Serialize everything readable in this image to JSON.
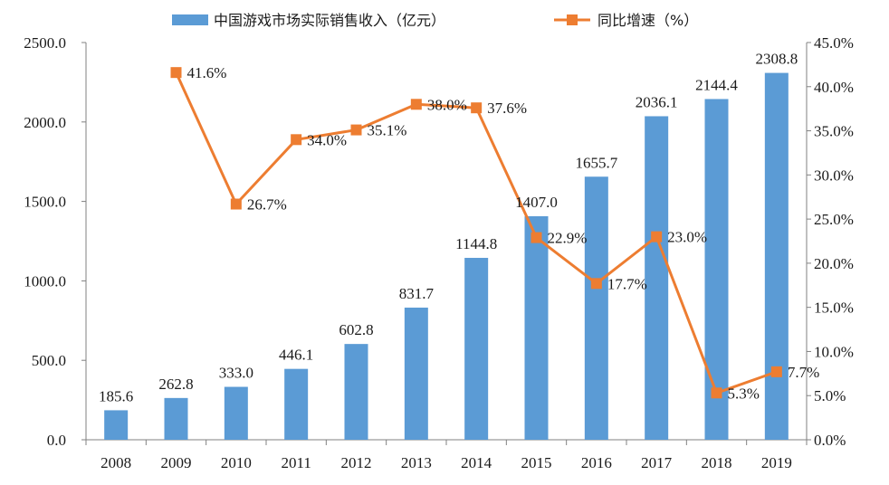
{
  "chart_data": {
    "type": "bar",
    "categories": [
      "2008",
      "2009",
      "2010",
      "2011",
      "2012",
      "2013",
      "2014",
      "2015",
      "2016",
      "2017",
      "2018",
      "2019"
    ],
    "series": [
      {
        "name": "中国游戏市场实际销售收入（亿元）",
        "type": "bar",
        "axis": "left",
        "values": [
          185.6,
          262.8,
          333.0,
          446.1,
          602.8,
          831.7,
          1144.8,
          1407.0,
          1655.7,
          2036.1,
          2144.4,
          2308.8
        ],
        "labels": [
          "185.6",
          "262.8",
          "333.0",
          "446.1",
          "602.8",
          "831.7",
          "1144.8",
          "1407.0",
          "1655.7",
          "2036.1",
          "2144.4",
          "2308.8"
        ]
      },
      {
        "name": "同比增速（%）",
        "type": "line",
        "axis": "right",
        "values": [
          null,
          41.6,
          26.7,
          34.0,
          35.1,
          38.0,
          37.6,
          22.9,
          17.7,
          23.0,
          5.3,
          7.7
        ],
        "labels": [
          "",
          "41.6%",
          "26.7%",
          "34.0%",
          "35.1%",
          "38.0%",
          "37.6%",
          "22.9%",
          "17.7%",
          "23.0%",
          "5.3%",
          "7.7%"
        ]
      }
    ],
    "y_left": {
      "range": [
        0,
        2500
      ],
      "ticks": [
        0,
        500,
        1000,
        1500,
        2000,
        2500
      ],
      "tick_labels": [
        "0.0",
        "500.0",
        "1000.0",
        "1500.0",
        "2000.0",
        "2500.0"
      ]
    },
    "y_right": {
      "range": [
        0,
        45
      ],
      "ticks": [
        0,
        5,
        10,
        15,
        20,
        25,
        30,
        35,
        40,
        45
      ],
      "tick_labels": [
        "0.0%",
        "5.0%",
        "10.0%",
        "15.0%",
        "20.0%",
        "25.0%",
        "30.0%",
        "35.0%",
        "40.0%",
        "45.0%"
      ]
    },
    "legend_position": "top-center",
    "grid": false,
    "colors": {
      "bar": "#5B9BD5",
      "line": "#ED7D31",
      "axis": "#808080"
    }
  }
}
